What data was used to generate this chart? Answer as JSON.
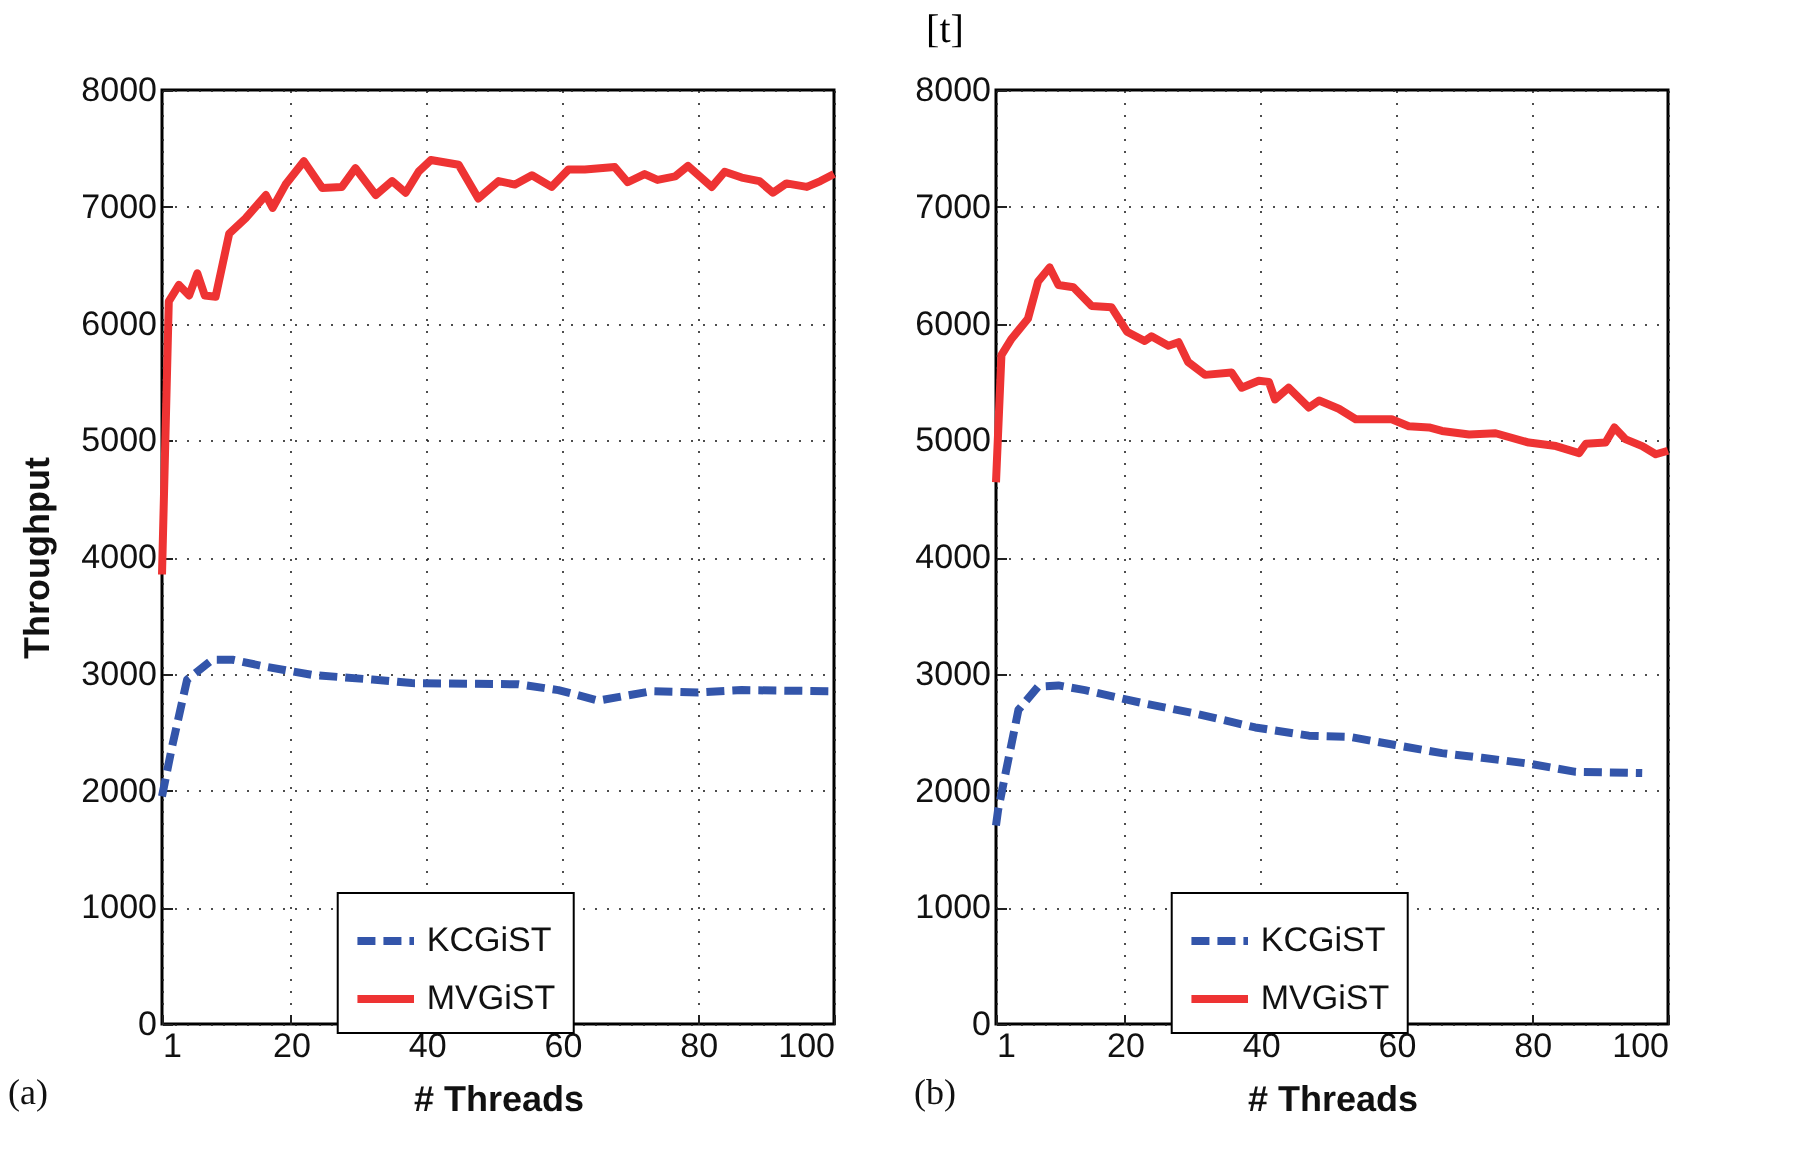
{
  "chart_data": [
    {
      "type": "line",
      "xlabel": "# Threads",
      "ylabel": "Throughput",
      "annotations": [
        "[t]",
        "(a)"
      ],
      "xlim": [
        1,
        100
      ],
      "xticks": [
        1,
        20,
        40,
        60,
        80,
        100
      ],
      "ylim": [
        0,
        8000
      ],
      "yticks": [
        0,
        1000,
        2000,
        3000,
        4000,
        5000,
        6000,
        7000,
        8000
      ],
      "grid": true,
      "legend": "bottom",
      "series": [
        {
          "name": "KCGiST",
          "color": "#3355aa",
          "line_style": "dashed",
          "x": [
            1,
            2.5,
            4.7,
            8.4,
            11.4,
            16.3,
            23.1,
            32,
            37.8,
            53.5,
            59.4,
            65.3,
            73.1,
            80,
            86.4,
            100
          ],
          "values": [
            1950,
            2380,
            2950,
            3120,
            3120,
            3060,
            2990,
            2950,
            2920,
            2910,
            2860,
            2770,
            2850,
            2840,
            2860,
            2850
          ]
        },
        {
          "name": "MVGiST",
          "color": "#ee3333",
          "line_style": "solid",
          "x": [
            1,
            2,
            3.5,
            5,
            6.2,
            7.3,
            8.9,
            10.9,
            13.3,
            16.3,
            17.3,
            19.2,
            21.9,
            24.6,
            27.5,
            29.5,
            32.5,
            34.9,
            36.9,
            38.8,
            40.6,
            44.7,
            47.6,
            50.6,
            53,
            55.5,
            58.4,
            60.9,
            63.3,
            67.7,
            69.6,
            72.1,
            74,
            76.6,
            78.5,
            82,
            83.9,
            86.4,
            89,
            91,
            93,
            96,
            98,
            100
          ],
          "values": [
            3850,
            6190,
            6330,
            6240,
            6430,
            6240,
            6230,
            6770,
            6900,
            7100,
            6990,
            7190,
            7390,
            7160,
            7170,
            7330,
            7100,
            7220,
            7120,
            7300,
            7400,
            7360,
            7070,
            7220,
            7190,
            7270,
            7170,
            7320,
            7320,
            7340,
            7210,
            7280,
            7230,
            7260,
            7350,
            7170,
            7300,
            7250,
            7220,
            7120,
            7200,
            7170,
            7220,
            7280
          ]
        }
      ]
    },
    {
      "type": "line",
      "xlabel": "# Threads",
      "annotations": [
        "(b)"
      ],
      "xlim": [
        1,
        100
      ],
      "xticks": [
        1,
        20,
        40,
        60,
        80,
        100
      ],
      "ylim": [
        0,
        8000
      ],
      "yticks": [
        0,
        1000,
        2000,
        3000,
        4000,
        5000,
        6000,
        7000,
        8000
      ],
      "grid": true,
      "legend": "bottom",
      "series": [
        {
          "name": "KCGiST",
          "color": "#3355aa",
          "line_style": "dashed",
          "x": [
            1,
            1.3,
            4.3,
            7.2,
            10.2,
            14.1,
            22.5,
            30.3,
            39.2,
            47.1,
            53,
            59.8,
            66.7,
            72.6,
            79.5,
            86.4,
            96.2
          ],
          "values": [
            1700,
            1830,
            2690,
            2890,
            2900,
            2860,
            2750,
            2660,
            2540,
            2470,
            2460,
            2390,
            2320,
            2280,
            2230,
            2160,
            2150
          ]
        },
        {
          "name": "MVGiST",
          "color": "#ee3333",
          "line_style": "solid",
          "x": [
            1,
            1.8,
            3.3,
            5.7,
            7.2,
            8.9,
            10.2,
            12.4,
            15.1,
            18,
            20.3,
            22.9,
            23.9,
            26.4,
            27.9,
            29.3,
            31.8,
            35.7,
            37.2,
            39.7,
            41.2,
            42.1,
            44.1,
            47.1,
            48.6,
            51.5,
            54,
            59.3,
            61.8,
            64.8,
            66.7,
            70.7,
            74.6,
            79.5,
            83.5,
            86.9,
            87.9,
            90.8,
            92.1,
            93.7,
            96.2,
            98.2,
            100
          ],
          "values": [
            4640,
            5730,
            5870,
            6040,
            6360,
            6480,
            6330,
            6310,
            6150,
            6140,
            5930,
            5850,
            5890,
            5810,
            5840,
            5670,
            5560,
            5580,
            5450,
            5510,
            5500,
            5350,
            5450,
            5280,
            5340,
            5270,
            5180,
            5180,
            5120,
            5110,
            5080,
            5050,
            5060,
            4980,
            4950,
            4890,
            4970,
            4980,
            5110,
            5010,
            4950,
            4880,
            4910
          ]
        }
      ]
    }
  ]
}
